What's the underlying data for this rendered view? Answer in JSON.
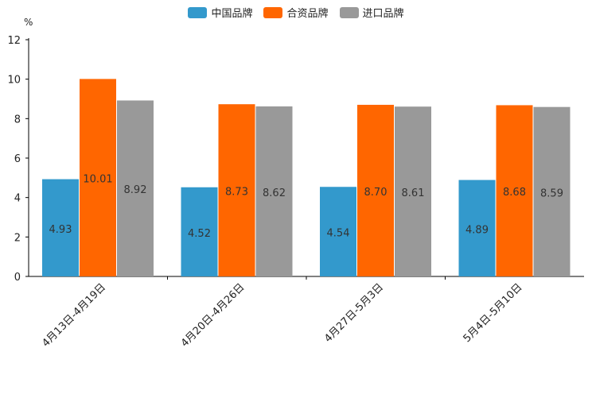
{
  "chart_data": {
    "type": "bar",
    "unit": "%",
    "categories": [
      "4月13日-4月19日",
      "4月20日-4月26日",
      "4月27日-5月3日",
      "5月4日-5月10日"
    ],
    "series": [
      {
        "name": "中国品牌",
        "color": "#3399cc",
        "values": [
          4.93,
          4.52,
          4.54,
          4.89
        ],
        "labels": [
          "4.93",
          "4.52",
          "4.54",
          "4.89"
        ]
      },
      {
        "name": "合资品牌",
        "color": "#ff6600",
        "values": [
          10.01,
          8.73,
          8.7,
          8.68
        ],
        "labels": [
          "10.01",
          "8.73",
          "8.70",
          "8.68"
        ]
      },
      {
        "name": "进口品牌",
        "color": "#999999",
        "values": [
          8.92,
          8.62,
          8.61,
          8.59
        ],
        "labels": [
          "8.92",
          "8.62",
          "8.61",
          "8.59"
        ]
      }
    ],
    "ylim": [
      0,
      12
    ],
    "yticks": [
      "0",
      "2",
      "4",
      "6",
      "8",
      "10",
      "12"
    ],
    "legend_position": "top-center",
    "grid": false
  }
}
